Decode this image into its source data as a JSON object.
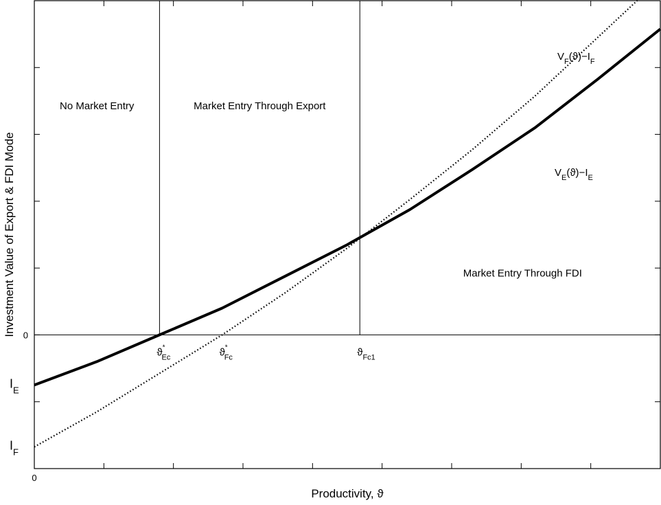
{
  "chart_data": {
    "type": "line",
    "xlabel": "Productivity, ϑ",
    "ylabel": "Investment Value of Export & FDI Mode",
    "xlim": [
      0,
      1
    ],
    "ylim": [
      -0.8,
      2
    ],
    "grid": false,
    "x_tick_labels": [
      {
        "x": 0,
        "label": "0"
      }
    ],
    "y_tick_labels": [
      {
        "y": 0,
        "label": "0"
      },
      {
        "y": -0.3,
        "main": "I",
        "sub": "E"
      },
      {
        "y": -0.67,
        "main": "I",
        "sub": "F"
      }
    ],
    "series": [
      {
        "name": "V_E(ϑ)−I_E",
        "label_main": "V",
        "label_sub1": "E",
        "label_mid": "(ϑ)−I",
        "label_sub2": "E",
        "style": "solid-thick",
        "color": "#000000",
        "points": [
          [
            0,
            -0.3
          ],
          [
            0.1,
            -0.16
          ],
          [
            0.2,
            0.0
          ],
          [
            0.3,
            0.16
          ],
          [
            0.4,
            0.35
          ],
          [
            0.5,
            0.54
          ],
          [
            0.6,
            0.75
          ],
          [
            0.7,
            0.99
          ],
          [
            0.8,
            1.24
          ],
          [
            0.9,
            1.53
          ],
          [
            1.0,
            1.83
          ]
        ]
      },
      {
        "name": "V_F(ϑ)−I_F",
        "label_main": "V",
        "label_sub1": "F",
        "label_mid": "(ϑ)−I",
        "label_sub2": "F",
        "style": "dotted",
        "color": "#000000",
        "points": [
          [
            0,
            -0.67
          ],
          [
            0.1,
            -0.46
          ],
          [
            0.2,
            -0.23
          ],
          [
            0.3,
            0.0
          ],
          [
            0.4,
            0.25
          ],
          [
            0.5,
            0.52
          ],
          [
            0.6,
            0.81
          ],
          [
            0.7,
            1.11
          ],
          [
            0.8,
            1.43
          ],
          [
            0.9,
            1.78
          ],
          [
            1.0,
            2.13
          ]
        ]
      }
    ],
    "vertical_lines": [
      0.2,
      0.52
    ],
    "horizontal_lines": [
      0
    ],
    "markers": [
      {
        "x": 0.2,
        "main": "ϑ",
        "sup": "*",
        "sub": "Ec"
      },
      {
        "x": 0.3,
        "main": "ϑ",
        "sup": "*",
        "sub": "Fc"
      },
      {
        "x": 0.52,
        "main": "ϑ",
        "sup": "",
        "sub": "Fc1"
      }
    ],
    "regions": [
      {
        "label": "No Market Entry",
        "x": 0.1,
        "y": 1.35
      },
      {
        "label": "Market Entry Through Export",
        "x": 0.36,
        "y": 1.35
      },
      {
        "label": "Market Entry Through FDI",
        "x": 0.78,
        "y": 0.35
      }
    ]
  }
}
